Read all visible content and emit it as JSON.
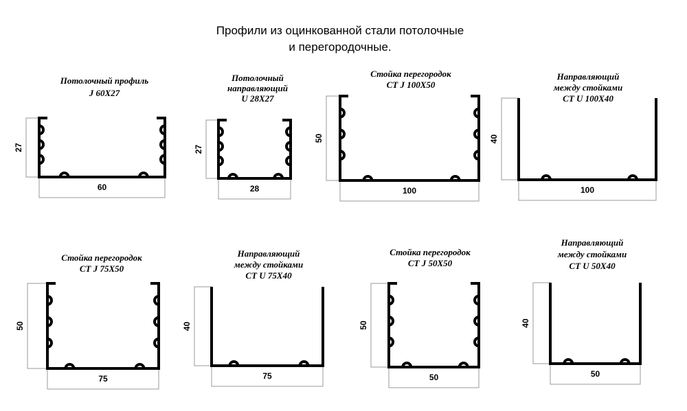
{
  "header": {
    "title_lines": [
      "Профили из оцинкованной стали потолочные",
      "и перегородочные."
    ]
  },
  "profiles": [
    {
      "name_lines": [
        "Потолочный профиль",
        "J  60X27"
      ],
      "height_label": 27,
      "width_label": 60
    },
    {
      "name_lines": [
        "Потолочный",
        "направляющий",
        "U 28X27"
      ],
      "height_label": 27,
      "width_label": 28
    },
    {
      "name_lines": [
        "Стойка перегородок",
        "CT J 100X50"
      ],
      "height_label": 50,
      "width_label": 100
    },
    {
      "name_lines": [
        "Направляющий",
        "между стойками",
        "CT U 100X40"
      ],
      "height_label": 40,
      "width_label": 100
    },
    {
      "name_lines": [
        "Стойка перегородок",
        "CT J  75X50"
      ],
      "height_label": 50,
      "width_label": 75
    },
    {
      "name_lines": [
        "Направляющий",
        "между стойками",
        "CT U 75X40"
      ],
      "height_label": 40,
      "width_label": 75
    },
    {
      "name_lines": [
        "Стойка перегородок",
        "CT J 50X50"
      ],
      "height_label": 50,
      "width_label": 50
    },
    {
      "name_lines": [
        "Направляющий",
        "между стойками",
        "CT U 50X40"
      ],
      "height_label": 40,
      "width_label": 50
    }
  ]
}
